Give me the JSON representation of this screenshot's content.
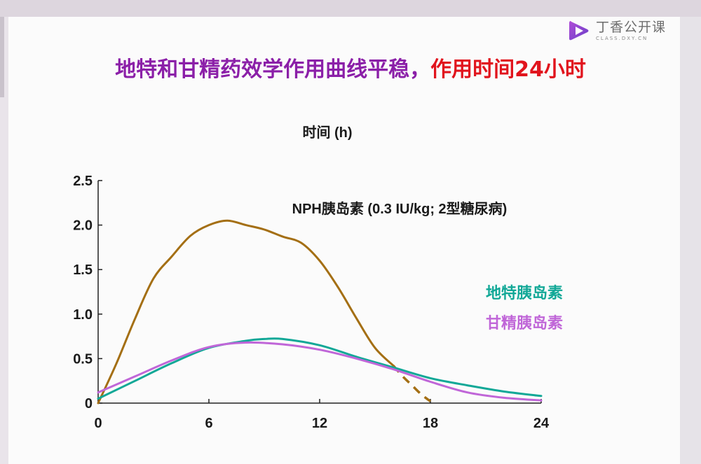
{
  "header": {
    "logo_text": "丁香公开课",
    "logo_subtext": "CLASS.DXY.CN",
    "logo_icon": "play-triangle-icon"
  },
  "slide": {
    "title_part1": "地特和甘精药效学作用曲线平稳，",
    "title_part2": "作用时间24小时",
    "title_colors": {
      "part1": "#8b1fa8",
      "part2": "#e1141d"
    }
  },
  "chart_data": {
    "type": "line",
    "xlabel": "时间 (h)",
    "ylabel": "",
    "xlim": [
      0,
      24
    ],
    "ylim": [
      0,
      2.5
    ],
    "x_ticks": [
      0,
      6,
      12,
      18,
      24
    ],
    "x_tick_labels": [
      "0",
      "6",
      "12",
      "18",
      "24"
    ],
    "y_ticks": [
      0,
      0.5,
      1.0,
      1.5,
      2.0,
      2.5
    ],
    "y_tick_labels": [
      "0",
      "0.5",
      "1.0",
      "1.5",
      "2.0",
      "2.5"
    ],
    "grid": false,
    "legend": "right",
    "series": [
      {
        "name": "NPH胰岛素 (0.3 IU/kg; 2型糖尿病)",
        "color": "#a46f14",
        "x": [
          0,
          1,
          2,
          3,
          4,
          5,
          6,
          7,
          8,
          9,
          10,
          11,
          12,
          13,
          14,
          15,
          16
        ],
        "y": [
          0,
          0.45,
          0.95,
          1.4,
          1.65,
          1.88,
          2.0,
          2.05,
          2.0,
          1.95,
          1.87,
          1.8,
          1.6,
          1.3,
          0.95,
          0.62,
          0.42
        ],
        "dashed_tail": {
          "x": [
            16,
            16.5,
            17,
            17.5,
            18
          ],
          "y": [
            0.42,
            0.3,
            0.2,
            0.1,
            0.02
          ]
        }
      },
      {
        "name": "地特胰岛素",
        "color": "#12a897",
        "x": [
          0,
          2,
          4,
          6,
          8,
          9,
          10,
          12,
          14,
          16,
          18,
          20,
          22,
          24
        ],
        "y": [
          0.05,
          0.25,
          0.45,
          0.62,
          0.7,
          0.72,
          0.72,
          0.65,
          0.52,
          0.4,
          0.28,
          0.2,
          0.13,
          0.08
        ]
      },
      {
        "name": "甘精胰岛素",
        "color": "#c066d8",
        "x": [
          0,
          2,
          4,
          6,
          8,
          10,
          12,
          14,
          16,
          18,
          20,
          22,
          24
        ],
        "y": [
          0.12,
          0.3,
          0.48,
          0.63,
          0.68,
          0.66,
          0.6,
          0.5,
          0.38,
          0.24,
          0.12,
          0.06,
          0.03
        ]
      }
    ]
  }
}
